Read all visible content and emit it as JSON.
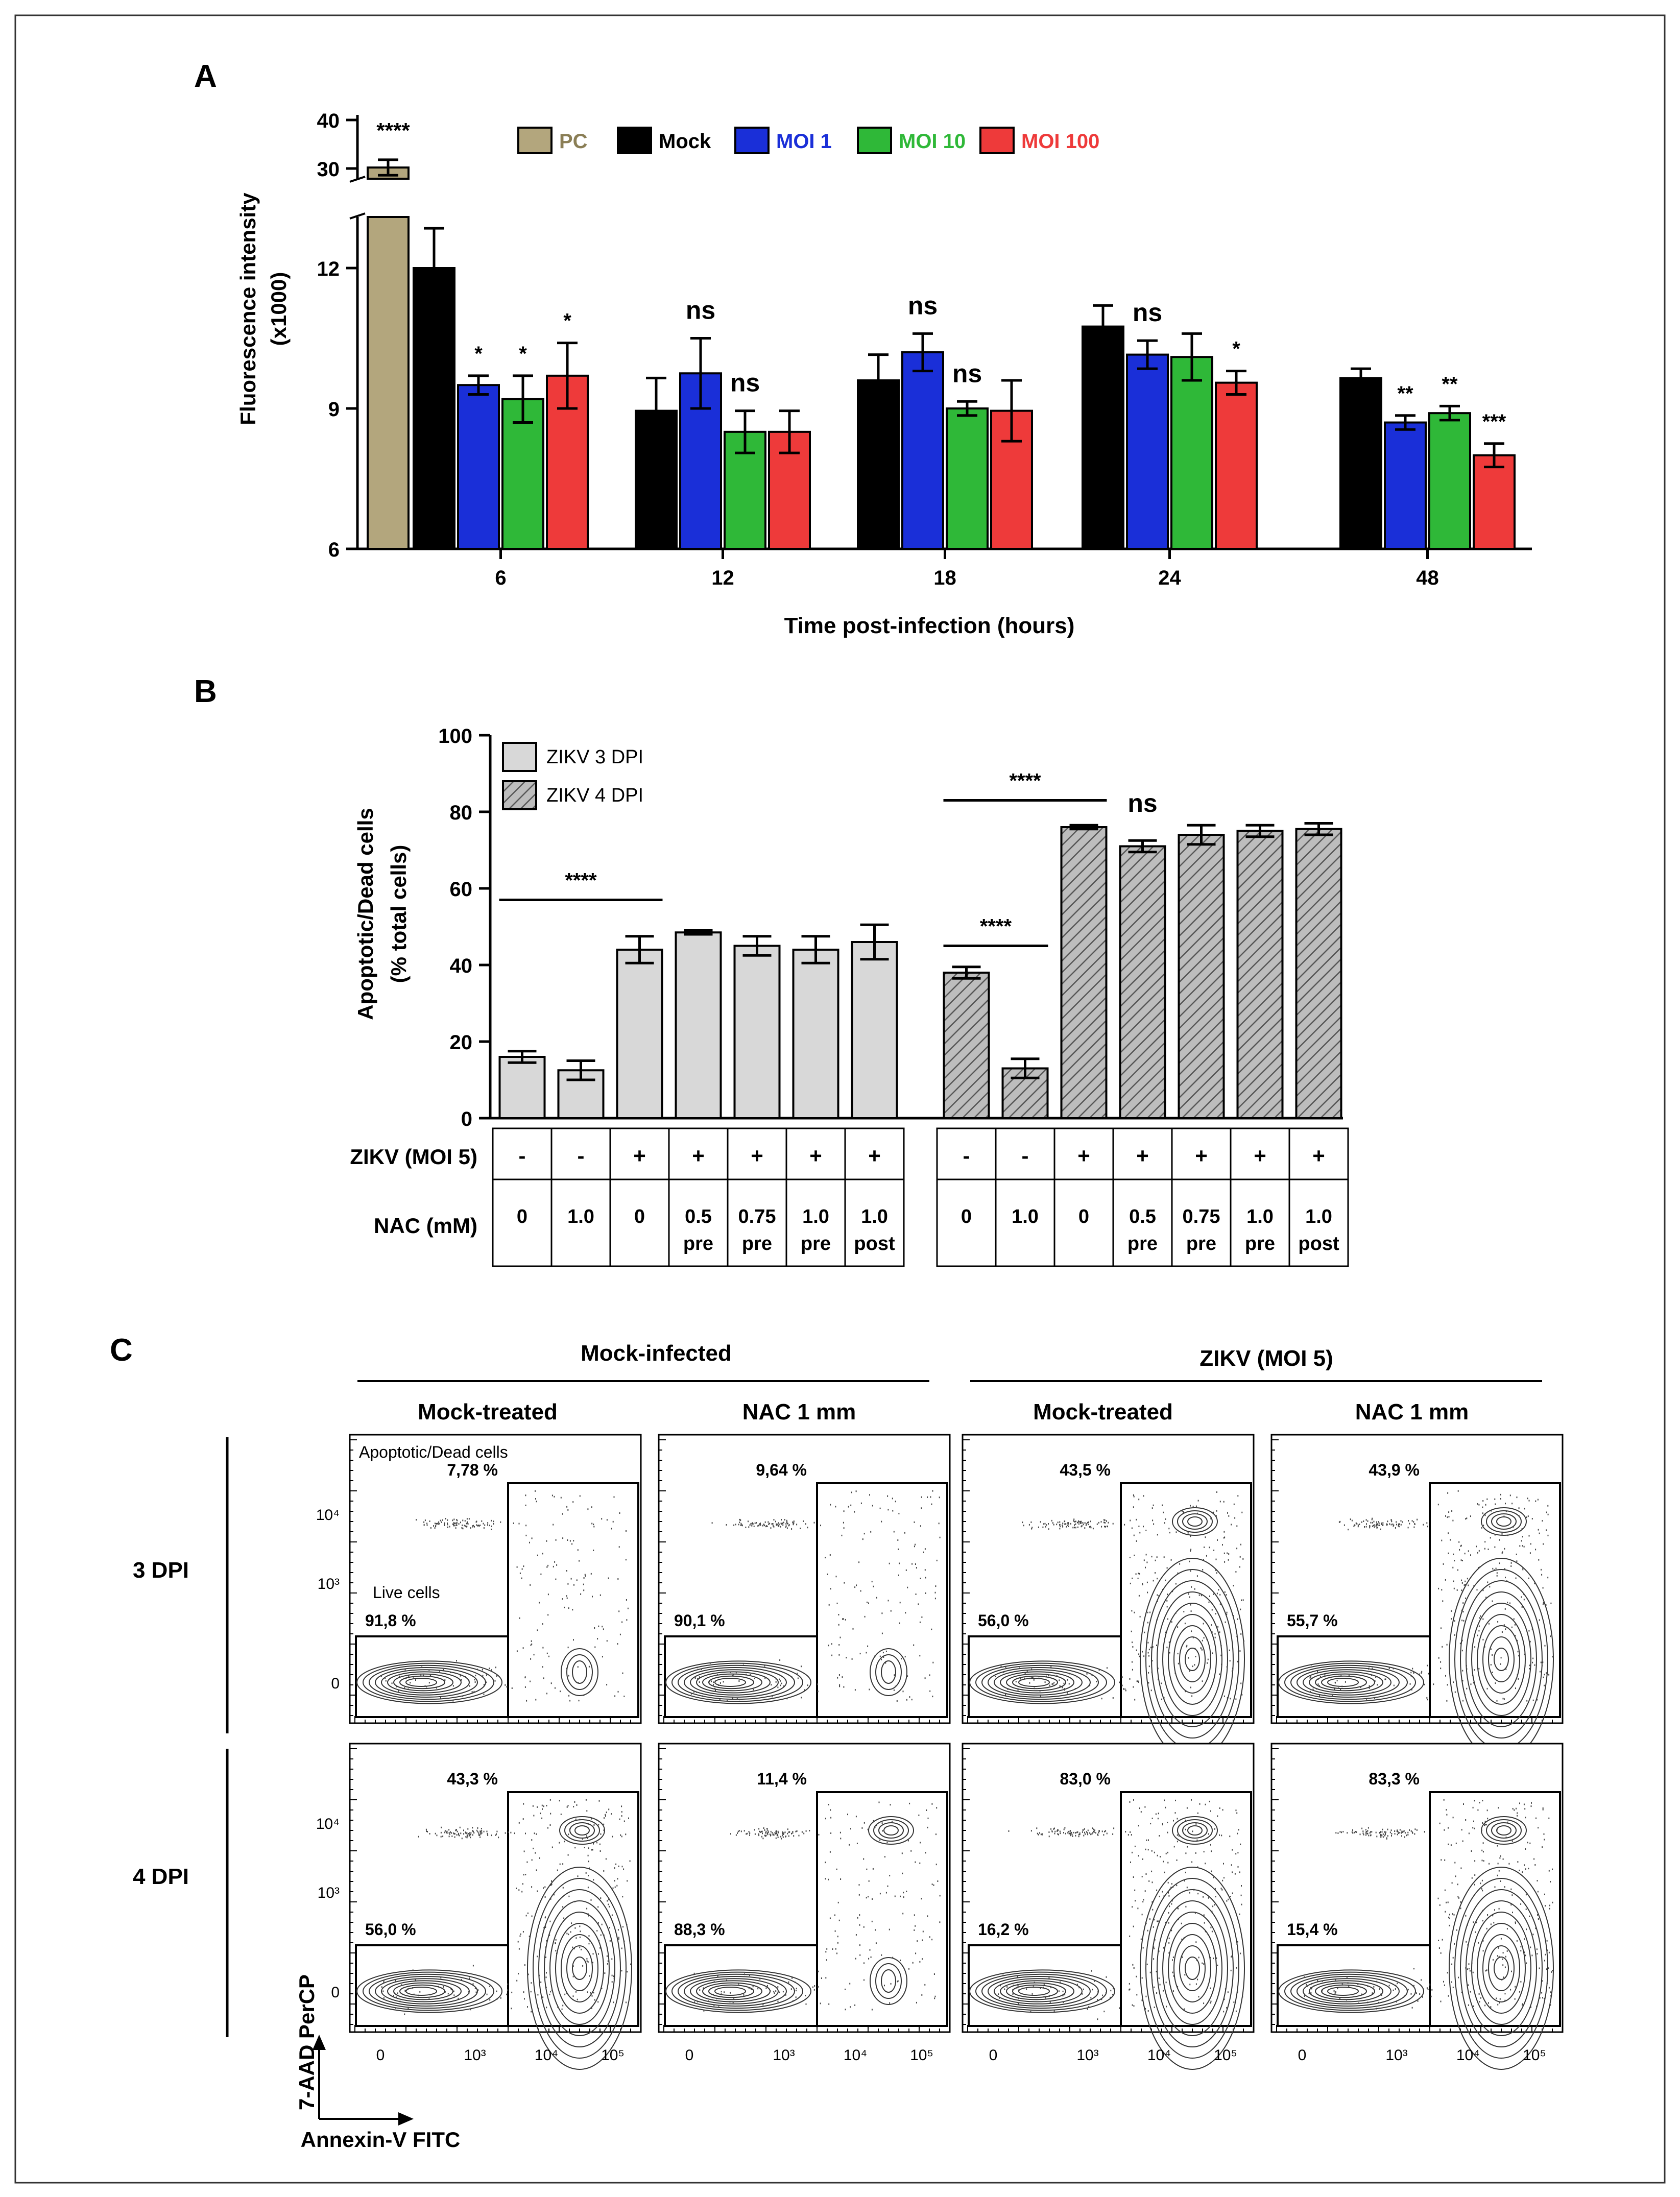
{
  "panels": {
    "a": "A",
    "b": "B",
    "c": "C"
  },
  "colors": {
    "pc": "#b3a67d",
    "mock": "#000000",
    "moi1": "#1a2fd8",
    "moi10": "#2fb838",
    "moi100": "#ee3a3a",
    "grey_bar": "#d8d8d8",
    "hatch_bar": "#9a9a9a"
  },
  "chart_data": [
    {
      "id": "A",
      "type": "bar",
      "xlabel": "Time post-infection (hours)",
      "ylabel_line1": "Fluorescence intensity",
      "ylabel_line2": "(x1000)",
      "yticks_lower": [
        "6",
        "9",
        "12"
      ],
      "yticks_upper": [
        "30",
        "40"
      ],
      "ylim_lower": [
        6,
        13
      ],
      "ylim_upper": [
        28,
        40
      ],
      "categories": [
        "6",
        "12",
        "18",
        "24",
        "48"
      ],
      "legend": [
        "PC",
        "Mock",
        "MOI 1",
        "MOI 10",
        "MOI 100"
      ],
      "positive_control": {
        "name": "PC",
        "value": 30.2,
        "err": 1.6,
        "sig": "****"
      },
      "series": [
        {
          "name": "Mock",
          "values": [
            12.0,
            8.95,
            9.6,
            10.75,
            9.65
          ],
          "err": [
            0.85,
            0.7,
            0.55,
            0.45,
            0.2
          ],
          "sig": [
            "",
            "",
            "",
            "",
            ""
          ]
        },
        {
          "name": "MOI 1",
          "values": [
            9.5,
            9.75,
            10.2,
            10.15,
            8.7
          ],
          "err": [
            0.2,
            0.75,
            0.4,
            0.3,
            0.15
          ],
          "sig": [
            "*",
            "ns",
            "ns",
            "ns",
            "**"
          ]
        },
        {
          "name": "MOI 10",
          "values": [
            9.2,
            8.5,
            9.0,
            10.1,
            8.9
          ],
          "err": [
            0.5,
            0.45,
            0.15,
            0.5,
            0.15
          ],
          "sig": [
            "*",
            "ns",
            "ns",
            "",
            "**"
          ]
        },
        {
          "name": "MOI 100",
          "values": [
            9.7,
            8.5,
            8.95,
            9.55,
            8.0
          ],
          "err": [
            0.7,
            0.45,
            0.65,
            0.25,
            0.25
          ],
          "sig": [
            "*",
            "",
            "",
            "*",
            "***"
          ]
        }
      ]
    },
    {
      "id": "B",
      "type": "bar",
      "ylabel_line1": "Apoptotic/Dead cells",
      "ylabel_line2": "(% total cells)",
      "yticks": [
        "0",
        "20",
        "40",
        "60",
        "80",
        "100"
      ],
      "ylim": [
        0,
        100
      ],
      "legend": [
        "ZIKV 3 DPI",
        "ZIKV 4 DPI"
      ],
      "row_labels": [
        "ZIKV (MOI 5)",
        "NAC (mM)"
      ],
      "zikv": [
        "-",
        "-",
        "+",
        "+",
        "+",
        "+",
        "+"
      ],
      "nac_top": [
        "0",
        "1.0",
        "0",
        "0.5",
        "0.75",
        "1.0",
        "1.0"
      ],
      "nac_bottom": [
        "",
        "",
        "",
        "pre",
        "pre",
        "pre",
        "post"
      ],
      "series": [
        {
          "name": "ZIKV 3 DPI",
          "values": [
            16,
            12.5,
            44,
            48.5,
            45,
            44,
            46
          ],
          "err": [
            1.5,
            2.5,
            3.5,
            0.5,
            2.5,
            3.5,
            4.5
          ]
        },
        {
          "name": "ZIKV 4 DPI",
          "values": [
            38,
            13,
            76,
            71,
            74,
            75,
            75.5
          ],
          "err": [
            1.5,
            2.5,
            0.5,
            1.5,
            2.5,
            1.5,
            1.5
          ]
        }
      ],
      "significance": [
        {
          "label": "****",
          "group": "3 DPI",
          "from": 1,
          "to": 3
        },
        {
          "label": "****",
          "group": "4 DPI",
          "from": 1,
          "to": 2
        },
        {
          "label": "****",
          "group": "4 DPI",
          "from": 1,
          "to": 3
        },
        {
          "label": "ns",
          "group": "4 DPI",
          "at": 4
        }
      ]
    }
  ],
  "flow": {
    "group_mock": "Mock-infected",
    "group_zikv": "ZIKV (MOI 5)",
    "col_labels": [
      "Mock-treated",
      "NAC 1 mm",
      "Mock-treated",
      "NAC 1 mm"
    ],
    "row_labels": [
      "3 DPI",
      "4 DPI"
    ],
    "gate_dead": "Apoptotic/Dead cells",
    "gate_live": "Live cells",
    "yticks": [
      "10⁴",
      "10³",
      "0"
    ],
    "xticks": [
      "0",
      "10³",
      "10⁴",
      "10⁵"
    ],
    "y_axis_label": "7-AAD PerCP",
    "x_axis_label": "Annexin-V FITC",
    "percent_dead": [
      [
        "7,78 %",
        "9,64 %",
        "43,5 %",
        "43,9 %"
      ],
      [
        "43,3 %",
        "11,4 %",
        "83,0 %",
        "83,3 %"
      ]
    ],
    "percent_live": [
      [
        "91,8 %",
        "90,1 %",
        "56,0 %",
        "55,7 %"
      ],
      [
        "56,0 %",
        "88,3 %",
        "16,2 %",
        "15,4 %"
      ]
    ]
  }
}
